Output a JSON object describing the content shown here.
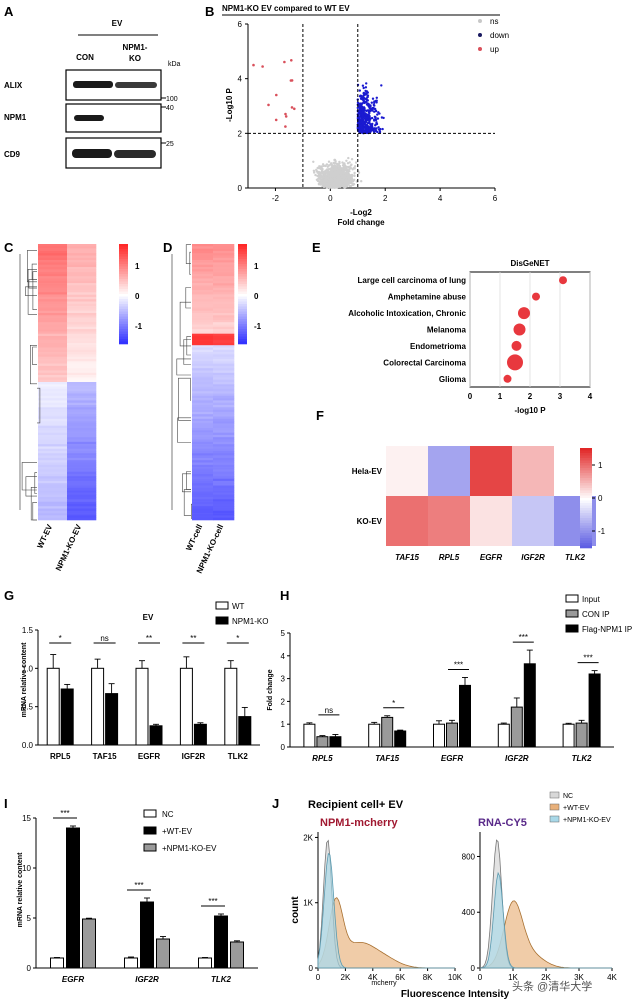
{
  "panels": {
    "A": {
      "label": "A",
      "group": "EV",
      "lanes": [
        "CON",
        "NPM1-\nKO"
      ],
      "lane_con": "CON",
      "lane_ko_1": "NPM1-",
      "lane_ko_2": "KO",
      "kda": "kDa",
      "rows": [
        "ALIX",
        "NPM1",
        "CD9"
      ],
      "markers": [
        "100",
        "40",
        "25"
      ]
    },
    "B": {
      "label": "B",
      "title": "NPM1-KO EV compared to WT EV",
      "ylabel": "-Log10 P",
      "xlabel_1": "-Log2",
      "xlabel_2": "Fold change",
      "legend": [
        "ns",
        "down",
        "up"
      ],
      "colors": {
        "ns": "#c8c8c8",
        "down": "#1a1ad0",
        "up": "#d9505b"
      }
    },
    "C": {
      "label": "C",
      "columns": [
        "WT-EV",
        "NPM1-KO-EV"
      ],
      "scale": [
        "1",
        "0",
        "-1"
      ]
    },
    "D": {
      "label": "D",
      "columns": [
        "WT-cell",
        "NPM1-KO-cell"
      ],
      "scale": [
        "1",
        "0",
        "-1"
      ]
    },
    "E": {
      "label": "E",
      "title": "DisGeNET",
      "xlabel": "-log10 P",
      "terms": [
        "Large cell carcinoma of lung",
        "Amphetamine abuse",
        "Alcoholic Intoxication, Chronic",
        "Melanoma",
        "Endometrioma",
        "Colorectal Carcinoma",
        "Glioma"
      ]
    },
    "F": {
      "label": "F",
      "rows": [
        "Hela-EV",
        "KO-EV"
      ],
      "cols": [
        "TAF15",
        "RPL5",
        "EGFR",
        "IGF2R",
        "TLK2"
      ],
      "scale": [
        "1",
        "0",
        "-1"
      ]
    },
    "G": {
      "label": "G",
      "title": "EV",
      "ylabel": "mRNA relative content",
      "legend": [
        "WT",
        "NPM1-KO"
      ],
      "sig": [
        "*",
        "ns",
        "**",
        "**",
        "*"
      ]
    },
    "H": {
      "label": "H",
      "ylabel": "Fold change",
      "legend": [
        "Input",
        "CON IP",
        "Flag-NPM1 IP"
      ],
      "sig": [
        "ns",
        "*",
        "***",
        "***",
        "***"
      ]
    },
    "I": {
      "label": "I",
      "ylabel": "mRNA relative content",
      "legend": [
        "NC",
        "+WT-EV",
        "+NPM1-KO-EV"
      ],
      "sig": [
        "***",
        "***",
        "***"
      ]
    },
    "J": {
      "label": "J",
      "title": "Recipient cell+ EV",
      "left_title": "NPM1-mcherry",
      "right_title": "RNA-CY5",
      "ylabel": "count",
      "xlabel": "Fluorescence Intensity",
      "left_xlabel": "mcherry",
      "legend": [
        "NC",
        "+WT-EV",
        "+NPM1-KO-EV"
      ],
      "watermark": "头条 @清华大学"
    }
  },
  "chart_data": [
    {
      "id": "E",
      "type": "scatter",
      "title": "DisGeNET",
      "xlabel": "-log10 P",
      "xlim": [
        0,
        4
      ],
      "x_ticks": [
        0,
        1,
        2,
        3,
        4
      ],
      "categories": [
        "Large cell carcinoma of lung",
        "Amphetamine abuse",
        "Alcoholic Intoxication, Chronic",
        "Melanoma",
        "Endometrioma",
        "Colorectal Carcinoma",
        "Glioma"
      ],
      "values": [
        3.1,
        2.2,
        1.8,
        1.65,
        1.55,
        1.5,
        1.25
      ]
    },
    {
      "id": "F",
      "type": "heatmap",
      "rows": [
        "Hela-EV",
        "KO-EV"
      ],
      "cols": [
        "TAF15",
        "RPL5",
        "EGFR",
        "IGF2R",
        "TLK2"
      ],
      "values": [
        [
          0.1,
          -0.8,
          1.3,
          0.5,
          0.0
        ],
        [
          1.0,
          0.9,
          0.2,
          -0.5,
          -1.0
        ]
      ],
      "zlim": [
        -1.5,
        1.5
      ]
    },
    {
      "id": "G",
      "type": "bar",
      "title": "EV",
      "ylabel": "mRNA relative content",
      "ylim": [
        0,
        1.5
      ],
      "y_ticks": [
        0.0,
        0.5,
        1.0,
        1.5
      ],
      "categories": [
        "RPL5",
        "TAF15",
        "EGFR",
        "IGF2R",
        "TLK2"
      ],
      "series": [
        {
          "name": "WT",
          "values": [
            1.0,
            1.0,
            1.0,
            1.0,
            1.0
          ],
          "err": [
            0.18,
            0.12,
            0.1,
            0.15,
            0.1
          ]
        },
        {
          "name": "NPM1-KO",
          "values": [
            0.73,
            0.67,
            0.25,
            0.27,
            0.37
          ],
          "err": [
            0.06,
            0.13,
            0.02,
            0.02,
            0.12
          ]
        }
      ]
    },
    {
      "id": "H",
      "type": "bar",
      "ylabel": "Fold change",
      "ylim": [
        0,
        5
      ],
      "y_ticks": [
        0,
        1,
        2,
        3,
        4,
        5
      ],
      "categories": [
        "RPL5",
        "TAF15",
        "EGFR",
        "IGF2R",
        "TLK2"
      ],
      "series": [
        {
          "name": "Input",
          "values": [
            1.0,
            1.0,
            1.0,
            1.0,
            1.0
          ],
          "err": [
            0.06,
            0.08,
            0.15,
            0.05,
            0.04
          ]
        },
        {
          "name": "CON IP",
          "values": [
            0.45,
            1.3,
            1.05,
            1.75,
            1.05
          ],
          "err": [
            0.05,
            0.07,
            0.12,
            0.4,
            0.12
          ]
        },
        {
          "name": "Flag-NPM1 IP",
          "values": [
            0.45,
            0.7,
            2.7,
            3.65,
            3.2
          ],
          "err": [
            0.1,
            0.04,
            0.35,
            0.6,
            0.15
          ]
        }
      ]
    },
    {
      "id": "I",
      "type": "bar",
      "ylabel": "mRNA relative content",
      "ylim": [
        0,
        15
      ],
      "y_ticks": [
        0,
        5,
        10,
        15
      ],
      "categories": [
        "EGFR",
        "IGF2R",
        "TLK2"
      ],
      "series": [
        {
          "name": "NC",
          "values": [
            1.0,
            1.0,
            1.0
          ],
          "err": [
            0.05,
            0.1,
            0.05
          ]
        },
        {
          "name": "+WT-EV",
          "values": [
            14.0,
            6.6,
            5.2
          ],
          "err": [
            0.2,
            0.4,
            0.2
          ]
        },
        {
          "name": "+NPM1-KO-EV",
          "values": [
            4.9,
            2.9,
            2.6
          ],
          "err": [
            0.08,
            0.25,
            0.12
          ]
        }
      ]
    },
    {
      "id": "B",
      "type": "scatter",
      "title": "NPM1-KO EV compared to WT EV",
      "xlim": [
        -3,
        6
      ],
      "ylim": [
        0,
        6
      ],
      "x_ticks": [
        -2,
        0,
        2,
        4,
        6
      ],
      "y_ticks": [
        0,
        2,
        4,
        6
      ],
      "thresholds": {
        "x": [
          -1,
          1
        ],
        "y": 2
      }
    },
    {
      "id": "J-left",
      "type": "area",
      "title": "NPM1-mcherry",
      "xlabel": "mcherry",
      "ylabel": "count",
      "x_ticks": [
        "0",
        "2K",
        "4K",
        "6K",
        "8K",
        "10K"
      ],
      "y_ticks": [
        "0",
        "1K",
        "2K"
      ]
    },
    {
      "id": "J-right",
      "type": "area",
      "title": "RNA-CY5",
      "x_ticks": [
        "0",
        "1K",
        "2K",
        "3K",
        "4K"
      ],
      "y_ticks": [
        "0",
        "400",
        "800"
      ]
    }
  ]
}
